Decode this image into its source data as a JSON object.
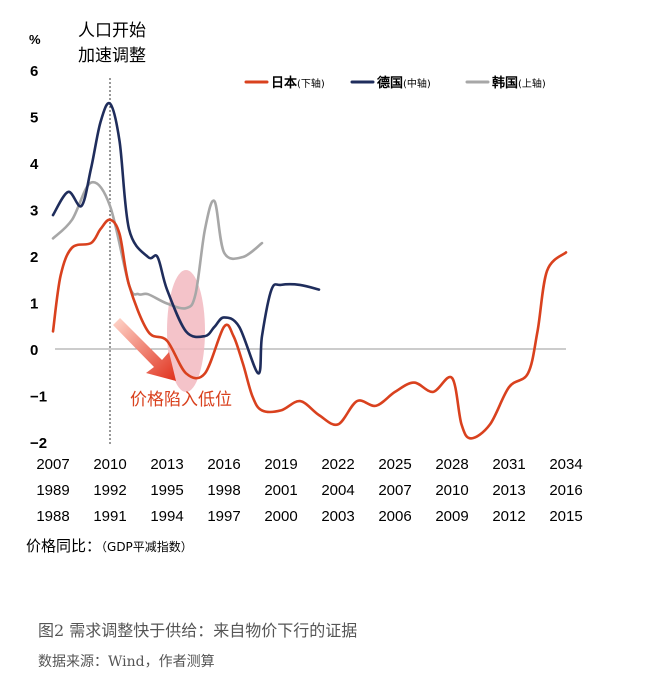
{
  "chart_data": {
    "type": "line",
    "y_unit": "%",
    "ylim": [
      -2,
      6
    ],
    "yticks": [
      6,
      5,
      4,
      3,
      2,
      1,
      0,
      -1,
      -2
    ],
    "x_axis_rows": [
      {
        "name": "日本",
        "labels": [
          "2007",
          "2010",
          "2013",
          "2016",
          "2019",
          "2022",
          "2025",
          "2028",
          "2031",
          "2034"
        ]
      },
      {
        "name": "德国",
        "labels": [
          "1989",
          "1992",
          "1995",
          "1998",
          "2001",
          "2004",
          "2007",
          "2010",
          "2013",
          "2016"
        ]
      },
      {
        "name": "韩国",
        "labels": [
          "1988",
          "1991",
          "1994",
          "1997",
          "2000",
          "2003",
          "2006",
          "2009",
          "2012",
          "2015"
        ]
      }
    ],
    "xlabel_main": "价格同比：",
    "xlabel_note": "（GDP平减指数）",
    "annotation_vline": [
      "人口开始",
      "加速调整"
    ],
    "annotation_low": "价格陷入低位",
    "series": [
      {
        "name": "日本",
        "axis_note": "(下轴)",
        "color": "#d9411e",
        "x": [
          2007,
          2007.4,
          2008,
          2009,
          2009.5,
          2010,
          2010.5,
          2011,
          2012,
          2013,
          2014,
          2015,
          2016,
          2016.5,
          2017,
          2017.5,
          2018,
          2019,
          2020,
          2021,
          2022,
          2023,
          2024,
          2025,
          2026,
          2027,
          2028,
          2028.5,
          2029,
          2030,
          2031,
          2032,
          2032.5,
          2033,
          2034
        ],
        "values": [
          0.4,
          1.6,
          2.2,
          2.3,
          2.6,
          2.8,
          2.5,
          1.4,
          0.4,
          0.2,
          -0.5,
          -0.5,
          0.5,
          0.3,
          -0.3,
          -1.0,
          -1.3,
          -1.3,
          -1.1,
          -1.4,
          -1.6,
          -1.1,
          -1.2,
          -0.9,
          -0.7,
          -0.9,
          -0.6,
          -1.6,
          -1.9,
          -1.6,
          -0.8,
          -0.5,
          0.4,
          1.7,
          2.1
        ]
      },
      {
        "name": "德国",
        "axis_note": "(中轴)",
        "color": "#1f2d5c",
        "x": [
          1989,
          1989.8,
          1990.5,
          1991,
          1991.5,
          1992,
          1992.5,
          1993,
          1994,
          1994.5,
          1995,
          1996,
          1997,
          1997.5,
          1998,
          1998.8,
          1999.8,
          2000,
          2000.5,
          2001,
          2002,
          2003
        ],
        "values": [
          2.9,
          3.4,
          3.1,
          3.9,
          4.9,
          5.3,
          4.5,
          2.6,
          2.0,
          2.0,
          1.3,
          0.4,
          0.3,
          0.5,
          0.7,
          0.5,
          -0.5,
          0.3,
          1.3,
          1.4,
          1.4,
          1.3
        ]
      },
      {
        "name": "韩国",
        "axis_note": "(上轴)",
        "color": "#a7a7a7",
        "x": [
          1988,
          1989,
          1990,
          1991,
          1992,
          1992.5,
          1993,
          1994,
          1995,
          1995.5,
          1996,
          1996.5,
          1997,
          1998,
          1999
        ],
        "values": [
          2.4,
          2.8,
          3.6,
          3.1,
          1.4,
          1.2,
          1.2,
          1.0,
          0.9,
          1.2,
          2.6,
          3.2,
          2.1,
          2.0,
          2.3
        ]
      }
    ]
  },
  "caption": "图2  需求调整快于供给：来自物价下行的证据",
  "source": "数据来源：Wind，作者测算"
}
